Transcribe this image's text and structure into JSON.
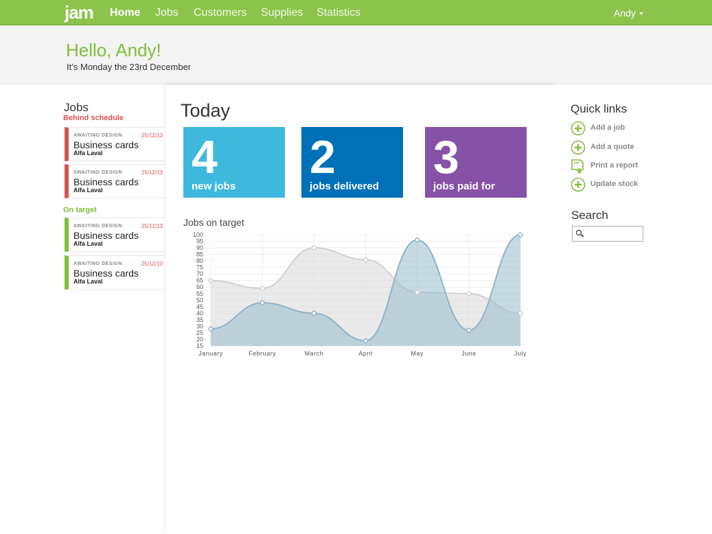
{
  "nav": {
    "logo": "jam",
    "items": [
      "Home",
      "Jobs",
      "Customers",
      "Supplies",
      "Statistics"
    ],
    "user": "Andy"
  },
  "greeting": {
    "hello": "Hello, Andy!",
    "date": "It’s Monday the 23rd December"
  },
  "jobs": {
    "title": "Jobs",
    "behind_label": "Behind schedule",
    "on_target_label": "On target",
    "behind": [
      {
        "status": "AWAITING DESIGN",
        "date": "25/12/13",
        "name": "Business cards",
        "client": "Alfa Laval"
      },
      {
        "status": "AWAITING DESIGN",
        "date": "25/12/13",
        "name": "Business cards",
        "client": "Alfa Laval"
      }
    ],
    "on_target": [
      {
        "status": "AWAITING DESIGN",
        "date": "25/12/13",
        "name": "Business cards",
        "client": "Alfa Laval"
      },
      {
        "status": "AWAITING DESIGN",
        "date": "25/12/13",
        "name": "Business cards",
        "client": "Alfa Laval"
      }
    ]
  },
  "today": {
    "title": "Today",
    "tiles": [
      {
        "number": "4",
        "label": "new jobs",
        "color": "#3fb8de"
      },
      {
        "number": "2",
        "label": "jobs delivered",
        "color": "#0070b8"
      },
      {
        "number": "3",
        "label": "jobs paid for",
        "color": "#8652a8"
      }
    ]
  },
  "chart_data": {
    "type": "area",
    "title": "Jobs on target",
    "categories": [
      "January",
      "February",
      "March",
      "April",
      "May",
      "June",
      "July"
    ],
    "y_ticks": [
      15,
      20,
      25,
      30,
      35,
      40,
      45,
      50,
      55,
      60,
      65,
      70,
      75,
      80,
      85,
      90,
      95,
      100
    ],
    "ylim": [
      15,
      100
    ],
    "grid": true,
    "series": [
      {
        "values": [
          65,
          59,
          90,
          81,
          56,
          55,
          40
        ],
        "color": "#d9d9d9"
      },
      {
        "values": [
          28,
          48,
          40,
          19,
          96,
          27,
          100
        ],
        "color": "#97bbcd"
      }
    ]
  },
  "quick_links": {
    "title": "Quick links",
    "items": [
      {
        "label": "Add a job",
        "icon": "plus-circle-icon"
      },
      {
        "label": "Add a quote",
        "icon": "plus-circle-icon"
      },
      {
        "label": "Print a report",
        "icon": "report-download-icon"
      },
      {
        "label": "Update stock",
        "icon": "plus-circle-icon"
      }
    ]
  },
  "search": {
    "title": "Search",
    "placeholder": ""
  }
}
